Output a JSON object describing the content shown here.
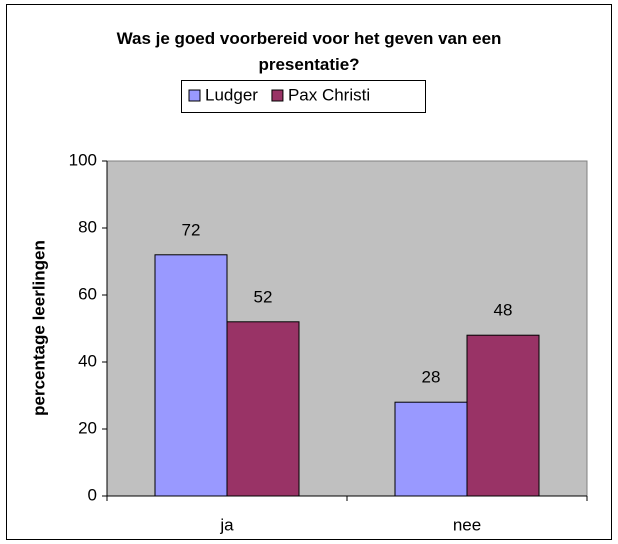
{
  "chart_data": {
    "type": "bar",
    "title": "Was je goed voorbereid voor het geven van een presentatie?",
    "y_label": "percentage leerlingen",
    "categories": [
      "ja",
      "nee"
    ],
    "series": [
      {
        "name": "Ludger",
        "color": "#9999ff",
        "values": [
          72,
          28
        ]
      },
      {
        "name": "Pax Christi",
        "color": "#993366",
        "values": [
          52,
          48
        ]
      }
    ],
    "ylim": [
      0,
      100
    ],
    "yticks": [
      0,
      20,
      40,
      60,
      80,
      100
    ],
    "grid": false,
    "legend": "top",
    "plot_background": "#c0c0c0"
  }
}
